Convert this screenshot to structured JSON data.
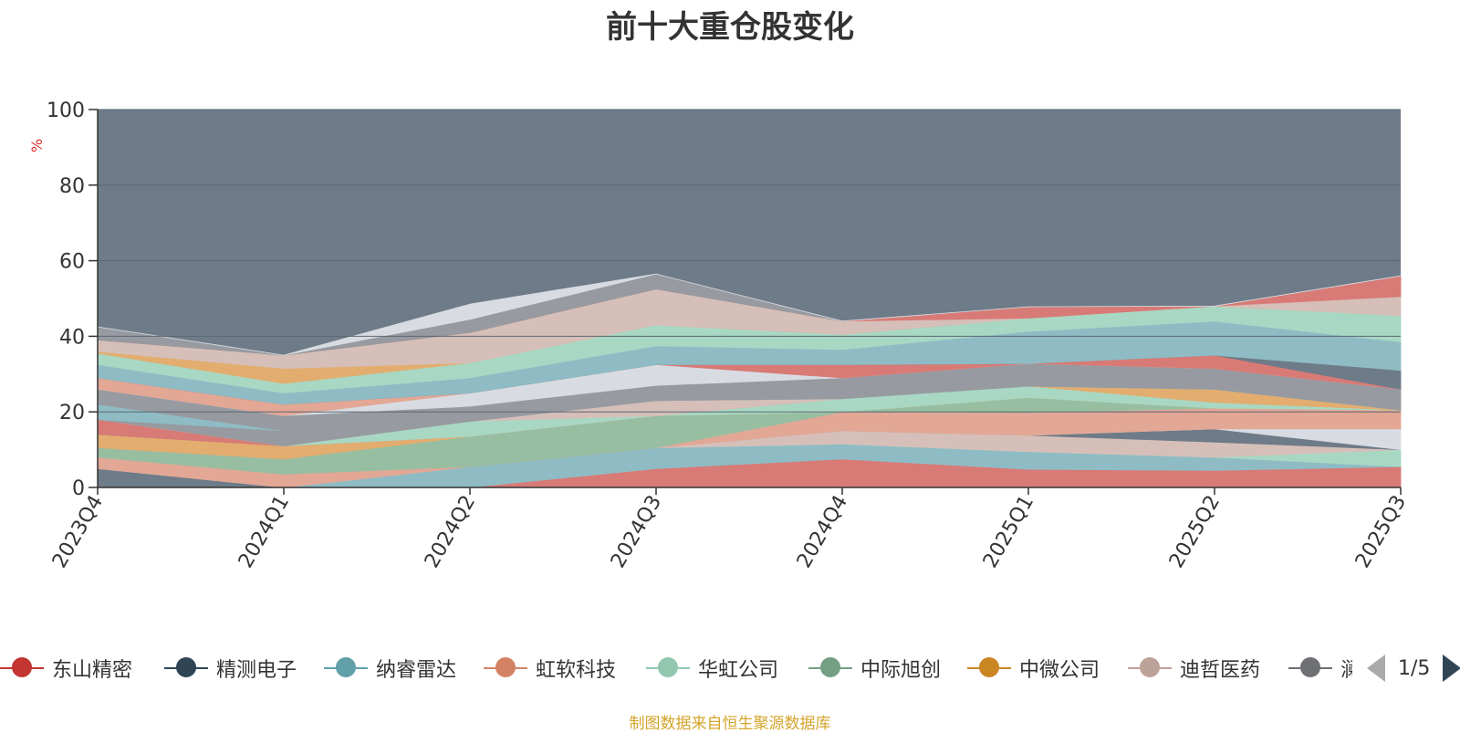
{
  "title": "前十大重仓股变化",
  "ylabel": "%",
  "source_note": "制图数据来自恒生聚源数据库",
  "legend_page": "1/5",
  "legend_items": [
    {
      "name": "东山精密",
      "color": "#c23531"
    },
    {
      "name": "精测电子",
      "color": "#2f4554"
    },
    {
      "name": "纳睿雷达",
      "color": "#61a0a8"
    },
    {
      "name": "虹软科技",
      "color": "#d48265"
    },
    {
      "name": "华虹公司",
      "color": "#91c7ae"
    },
    {
      "name": "中际旭创",
      "color": "#749f83"
    },
    {
      "name": "中微公司",
      "color": "#ca8622"
    },
    {
      "name": "迪哲医药",
      "color": "#bda29a"
    },
    {
      "name": "澜起科技",
      "color": "#6e7074"
    }
  ],
  "chart_data": {
    "type": "area",
    "stacked": true,
    "title": "前十大重仓股变化",
    "ylabel": "%",
    "xlabel": "",
    "ylim": [
      0,
      100
    ],
    "yticks": [
      0,
      20,
      40,
      60,
      80,
      100
    ],
    "categories": [
      "2023Q4",
      "2024Q1",
      "2024Q2",
      "2024Q3",
      "2024Q4",
      "2025Q1",
      "2025Q2",
      "2025Q3"
    ],
    "background_color": "#6e7b88",
    "series": [
      {
        "color": "#d87a76",
        "values": [
          0,
          0,
          0,
          5.0,
          7.5,
          4.8,
          4.5,
          5.5
        ]
      },
      {
        "color": "#8fbcc4",
        "values": [
          0,
          0,
          5.5,
          5.5,
          4.0,
          4.7,
          3.5,
          0
        ]
      },
      {
        "color": "#a8d8c4",
        "values": [
          0,
          0,
          0,
          0,
          0,
          0,
          0,
          4.5
        ]
      },
      {
        "color": "#d6bfb8",
        "values": [
          0,
          0,
          0,
          0,
          3.5,
          4.3,
          4.0,
          0
        ]
      },
      {
        "color": "#6e7b88",
        "values": [
          5.0,
          0,
          0,
          0,
          0,
          0,
          3.5,
          0
        ]
      },
      {
        "color": "#d8dce2",
        "values": [
          0,
          0,
          0,
          0,
          0,
          0,
          0,
          5.5
        ]
      },
      {
        "color": "#e3a795",
        "values": [
          3.0,
          3.5,
          0,
          0,
          5.0,
          6.0,
          5.5,
          5.0
        ]
      },
      {
        "color": "#98bea2",
        "values": [
          2.5,
          4.0,
          8.0,
          8.5,
          0,
          4.0,
          0,
          0
        ]
      },
      {
        "color": "#e2ad6f",
        "values": [
          3.5,
          3.5,
          0,
          0,
          0,
          0,
          0,
          0
        ]
      },
      {
        "color": "#a8d8c4",
        "values": [
          0,
          0,
          0,
          0,
          3.5,
          3.0,
          1.5,
          0
        ]
      },
      {
        "color": "#e2ad6f",
        "values": [
          0,
          0,
          0,
          0,
          0,
          0,
          3.5,
          0
        ]
      },
      {
        "color": "#d87a76",
        "values": [
          4.0,
          0,
          0,
          0,
          0,
          0,
          0,
          0
        ]
      },
      {
        "color": "#a8d8c4",
        "values": [
          0,
          0,
          4.0,
          0,
          0,
          0,
          0,
          0
        ]
      },
      {
        "color": "#d6bfb8",
        "values": [
          0,
          0,
          0,
          4.0,
          0,
          0,
          0,
          0
        ]
      },
      {
        "color": "#979aa0",
        "values": [
          0,
          4.0,
          0,
          0,
          0,
          0,
          0,
          0
        ]
      },
      {
        "color": "#8fbcc4",
        "values": [
          4.0,
          0,
          0,
          0,
          0,
          0,
          0,
          0
        ]
      },
      {
        "color": "#979aa0",
        "values": [
          4.0,
          4.0,
          4.0,
          4.0,
          5.5,
          6.0,
          5.5,
          5.5
        ]
      },
      {
        "color": "#d8dce2",
        "values": [
          0,
          0,
          3.5,
          5.5,
          0,
          0,
          0,
          0
        ]
      },
      {
        "color": "#e3a795",
        "values": [
          3.0,
          3.0,
          0,
          0,
          0,
          0,
          0,
          0
        ]
      },
      {
        "color": "#d87a76",
        "values": [
          0,
          0,
          0,
          0,
          3.5,
          0,
          3.5,
          0
        ]
      },
      {
        "color": "#6e7b88",
        "values": [
          0,
          0,
          0,
          0,
          0,
          0,
          0,
          5.0
        ]
      },
      {
        "color": "#8fbcc4",
        "values": [
          3.5,
          3.0,
          4.0,
          5.0,
          4.0,
          8.5,
          9.0,
          7.5
        ]
      },
      {
        "color": "#a8d8c4",
        "values": [
          3.0,
          2.5,
          4.0,
          5.5,
          4.0,
          3.5,
          4.0,
          7.0
        ]
      },
      {
        "color": "#e2ad6f",
        "values": [
          0.5,
          4.0,
          0,
          0,
          0,
          0,
          0,
          0
        ]
      },
      {
        "color": "#d6bfb8",
        "values": [
          3.0,
          3.5,
          8.0,
          9.5,
          3.5,
          0,
          0,
          5.0
        ]
      },
      {
        "color": "#d87a76",
        "values": [
          0,
          0,
          0,
          0,
          0,
          3.0,
          0,
          5.5
        ]
      },
      {
        "color": "#979aa0",
        "values": [
          3.5,
          0,
          3.5,
          4.0,
          0,
          0,
          0,
          0
        ]
      },
      {
        "color": "#d8dce2",
        "values": [
          0,
          0,
          4.0,
          0,
          0,
          0,
          0,
          0
        ]
      }
    ]
  }
}
